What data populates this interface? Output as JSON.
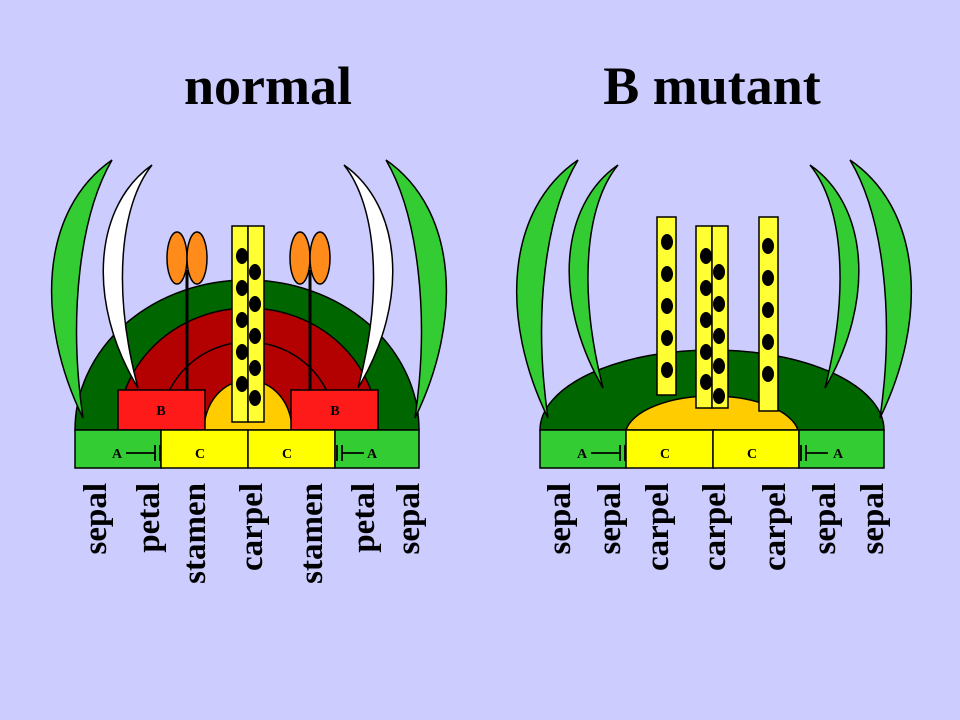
{
  "panels": [
    {
      "title": "normal",
      "b_labels": [
        "B",
        "B"
      ],
      "gene_labels": [
        "A",
        "C",
        "C",
        "A"
      ],
      "organs": [
        "sepal",
        "petal",
        "stamen",
        "carpel",
        "stamen",
        "petal",
        "sepal"
      ]
    },
    {
      "title": "B mutant",
      "gene_labels": [
        "A",
        "C",
        "C",
        "A"
      ],
      "organs": [
        "sepal",
        "sepal",
        "carpel",
        "carpel",
        "carpel",
        "sepal",
        "sepal"
      ]
    }
  ],
  "colors": {
    "background": "#ccccff",
    "sepal": "#33cc33",
    "petal": "#ffffff",
    "receptacle": "#006600",
    "b_domain": "#b30000",
    "b_box": "#ff1a1a",
    "stamen_anther": "#ff8c1a",
    "carpel": "#ffff33",
    "c_domain": "#ffcc00",
    "a_box": "#33cc33",
    "c_box": "#ffff00"
  }
}
